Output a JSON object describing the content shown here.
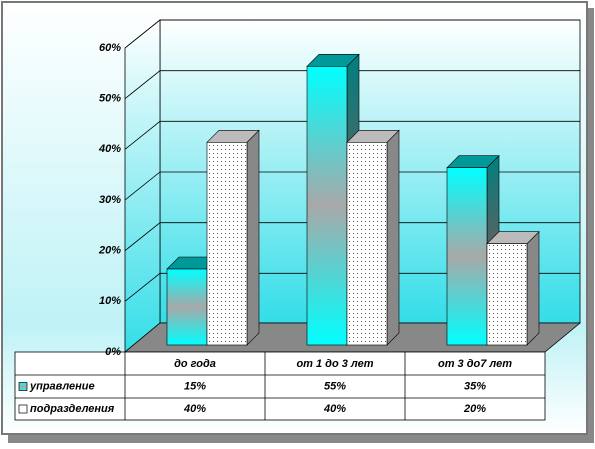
{
  "chart_data": {
    "type": "bar3d",
    "categories": [
      "до года",
      "от 1 до 3 лет",
      "от 3 до7 лет"
    ],
    "series": [
      {
        "name": "управление",
        "color": "#00ffff",
        "values": [
          15,
          55,
          35
        ],
        "value_labels": [
          "15%",
          "55%",
          "35%"
        ]
      },
      {
        "name": "подразделения",
        "color": "#ffffff",
        "values": [
          40,
          40,
          20
        ],
        "value_labels": [
          "40%",
          "40%",
          "20%"
        ]
      }
    ],
    "ylim": [
      0,
      60
    ],
    "yticks": [
      {
        "value": 0,
        "label": "0%"
      },
      {
        "value": 10,
        "label": "10%"
      },
      {
        "value": 20,
        "label": "20%"
      },
      {
        "value": 30,
        "label": "30%"
      },
      {
        "value": 40,
        "label": "40%"
      },
      {
        "value": 50,
        "label": "50%"
      },
      {
        "value": 60,
        "label": "60%"
      }
    ],
    "grid": true
  }
}
